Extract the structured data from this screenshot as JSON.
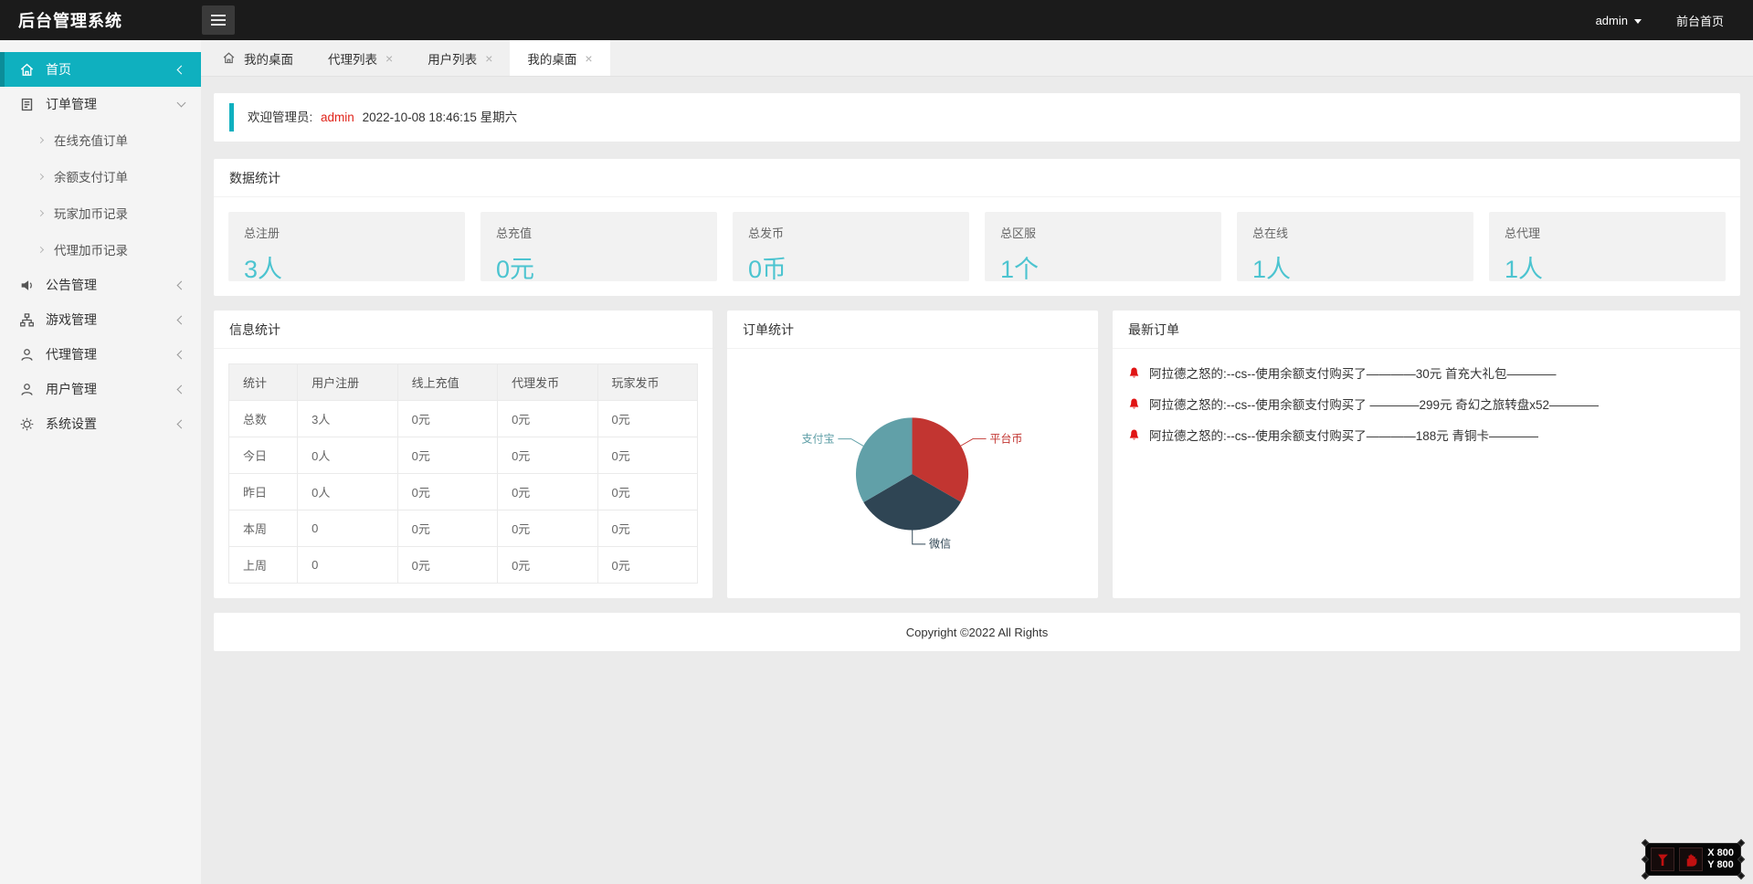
{
  "header": {
    "title": "后台管理系统",
    "user": "admin",
    "front_link": "前台首页"
  },
  "sidebar": {
    "items": [
      {
        "label": "首页",
        "icon": "home",
        "active": true,
        "expanded": false,
        "children": []
      },
      {
        "label": "订单管理",
        "icon": "order",
        "active": false,
        "expanded": true,
        "children": [
          "在线充值订单",
          "余额支付订单",
          "玩家加币记录",
          "代理加币记录"
        ]
      },
      {
        "label": "公告管理",
        "icon": "speaker",
        "active": false,
        "expanded": false,
        "children": []
      },
      {
        "label": "游戏管理",
        "icon": "sitemap",
        "active": false,
        "expanded": false,
        "children": []
      },
      {
        "label": "代理管理",
        "icon": "user",
        "active": false,
        "expanded": false,
        "children": []
      },
      {
        "label": "用户管理",
        "icon": "user",
        "active": false,
        "expanded": false,
        "children": []
      },
      {
        "label": "系统设置",
        "icon": "gear",
        "active": false,
        "expanded": false,
        "children": []
      }
    ]
  },
  "tabs": [
    {
      "label": "我的桌面",
      "home_icon": true,
      "closable": false,
      "active": false
    },
    {
      "label": "代理列表",
      "home_icon": false,
      "closable": true,
      "active": false
    },
    {
      "label": "用户列表",
      "home_icon": false,
      "closable": true,
      "active": false
    },
    {
      "label": "我的桌面",
      "home_icon": false,
      "closable": true,
      "active": true
    }
  ],
  "welcome": {
    "prefix": "欢迎管理员:",
    "user": "admin",
    "datetime": "2022-10-08  18:46:15  星期六"
  },
  "stats_panel": {
    "title": "数据统计",
    "cards": [
      {
        "label": "总注册",
        "value": "3人"
      },
      {
        "label": "总充值",
        "value": "0元"
      },
      {
        "label": "总发币",
        "value": "0币"
      },
      {
        "label": "总区服",
        "value": "1个"
      },
      {
        "label": "总在线",
        "value": "1人"
      },
      {
        "label": "总代理",
        "value": "1人"
      }
    ]
  },
  "info_panel": {
    "title": "信息统计",
    "table": {
      "headers": [
        "统计",
        "用户注册",
        "线上充值",
        "代理发币",
        "玩家发币"
      ],
      "rows": [
        [
          "总数",
          "3人",
          "0元",
          "0元",
          "0元"
        ],
        [
          "今日",
          "0人",
          "0元",
          "0元",
          "0元"
        ],
        [
          "昨日",
          "0人",
          "0元",
          "0元",
          "0元"
        ],
        [
          "本周",
          "0",
          "0元",
          "0元",
          "0元"
        ],
        [
          "上周",
          "0",
          "0元",
          "0元",
          "0元"
        ]
      ]
    }
  },
  "order_panel": {
    "title": "订单统计"
  },
  "chart_data": {
    "type": "pie",
    "title": "订单统计",
    "slices": [
      {
        "label": "平台币",
        "value": 33.3,
        "color": "#c23531"
      },
      {
        "label": "微信",
        "value": 33.3,
        "color": "#2f4554"
      },
      {
        "label": "支付宝",
        "value": 33.4,
        "color": "#61a0a8"
      }
    ],
    "start_angle_deg": 0,
    "direction": "clockwise",
    "labels": "outside-callout"
  },
  "latest_panel": {
    "title": "最新订单",
    "orders": [
      "阿拉德之怒的:--cs--使用余额支付购买了————30元 首充大礼包————",
      "阿拉德之怒的:--cs--使用余额支付购买了 ————299元 奇幻之旅转盘x52————",
      "阿拉德之怒的:--cs--使用余额支付购买了————188元 青铜卡————"
    ]
  },
  "footer": {
    "copyright": "Copyright ©2022 All Rights"
  },
  "overlay": {
    "x_label": "X 800",
    "y_label": "Y 800"
  },
  "colors": {
    "accent_teal": "#0fb0bf",
    "stat_value_teal": "#4cc4d0",
    "admin_red": "#e0241b",
    "header_black": "#1b1b1b",
    "pie_red": "#c23531",
    "pie_dark": "#2f4554",
    "pie_teal": "#61a0a8"
  }
}
